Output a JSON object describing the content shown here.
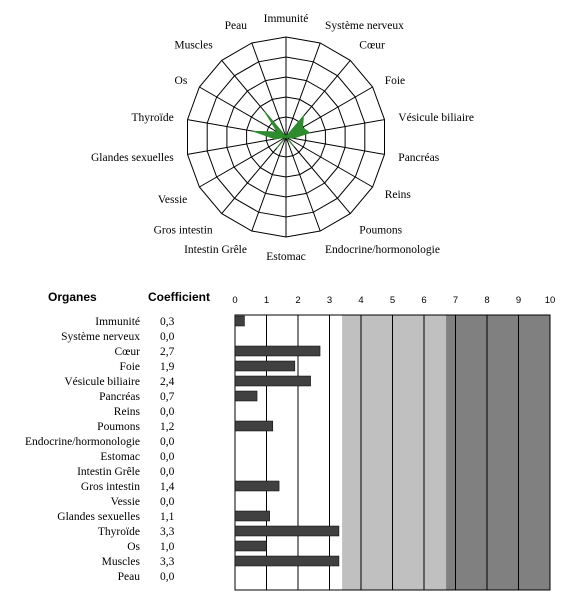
{
  "chart_data": [
    {
      "type": "radar",
      "axes": [
        "Immunité",
        "Système nerveux",
        "Cœur",
        "Foie",
        "Vésicule biliaire",
        "Pancréas",
        "Reins",
        "Poumons",
        "Endocrine/hormonologie",
        "Estomac",
        "Intestin Grêle",
        "Gros intestin",
        "Vessie",
        "Glandes sexuelles",
        "Thyroïde",
        "Os",
        "Muscles",
        "Peau"
      ],
      "values": [
        0.3,
        0.0,
        2.7,
        1.9,
        2.4,
        0.7,
        0.0,
        1.2,
        0.0,
        0.0,
        0.0,
        1.4,
        0.0,
        1.1,
        3.3,
        1.0,
        3.3,
        0.0
      ],
      "rmax": 10,
      "rings": 5,
      "fill_color": "#2e8b2e"
    },
    {
      "type": "bar",
      "orientation": "horizontal",
      "header_organs": "Organes",
      "header_coefficient": "Coefficient",
      "categories": [
        "Immunité",
        "Système nerveux",
        "Cœur",
        "Foie",
        "Vésicule biliaire",
        "Pancréas",
        "Reins",
        "Poumons",
        "Endocrine/hormonologie",
        "Estomac",
        "Intestin Grêle",
        "Gros intestin",
        "Vessie",
        "Glandes sexuelles",
        "Thyroïde",
        "Os",
        "Muscles",
        "Peau"
      ],
      "values": [
        0.3,
        0.0,
        2.7,
        1.9,
        2.4,
        0.7,
        0.0,
        1.2,
        0.0,
        0.0,
        0.0,
        1.4,
        0.0,
        1.1,
        3.3,
        1.0,
        3.3,
        0.0
      ],
      "value_labels": [
        "0,3",
        "0,0",
        "2,7",
        "1,9",
        "2,4",
        "0,7",
        "0,0",
        "1,2",
        "0,0",
        "0,0",
        "0,0",
        "1,4",
        "0,0",
        "1,1",
        "3,3",
        "1,0",
        "3,3",
        "0,0"
      ],
      "xlim": [
        0,
        10
      ],
      "xticks": [
        "0",
        "1",
        "2",
        "3",
        "4",
        "5",
        "6",
        "7",
        "8",
        "9",
        "10"
      ],
      "grid": true,
      "zones": [
        {
          "from": 0,
          "to": 3.4,
          "color": "#ffffff"
        },
        {
          "from": 3.4,
          "to": 6.7,
          "color": "#c0c0c0"
        },
        {
          "from": 6.7,
          "to": 10,
          "color": "#808080"
        }
      ],
      "bar_color": "#404040"
    }
  ]
}
